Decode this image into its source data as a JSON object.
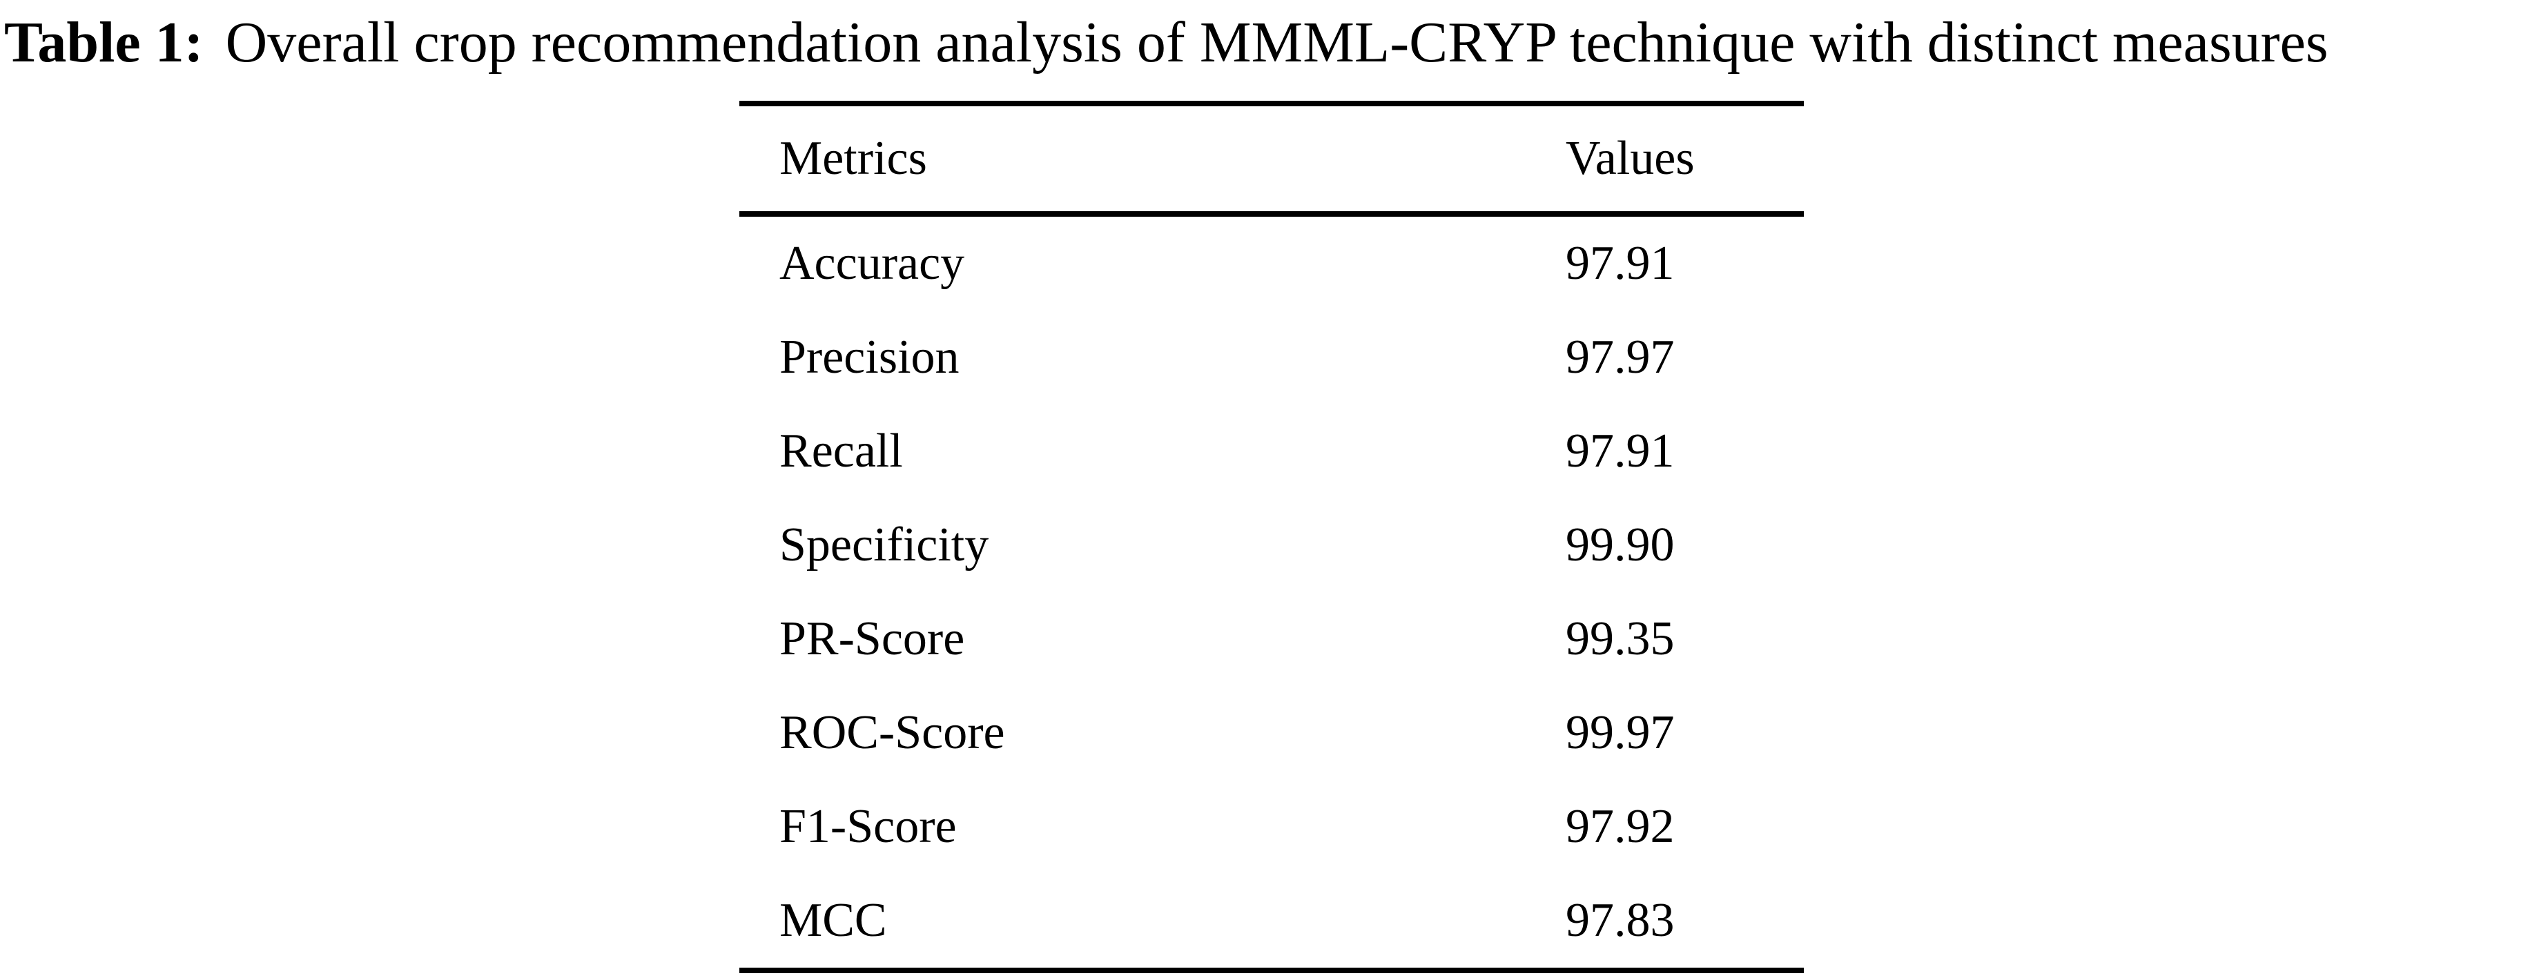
{
  "page": {
    "background_color": "#ffffff",
    "text_color": "#000000",
    "rule_color": "#000000"
  },
  "caption": {
    "label": "Table 1:",
    "text": "Overall crop recommendation analysis of MMML-CRYP technique with distinct measures"
  },
  "table": {
    "headers": {
      "metric": "Metrics",
      "value": "Values"
    },
    "rows": [
      {
        "metric": "Accuracy",
        "value": "97.91"
      },
      {
        "metric": "Precision",
        "value": "97.97"
      },
      {
        "metric": "Recall",
        "value": "97.91"
      },
      {
        "metric": "Specificity",
        "value": "99.90"
      },
      {
        "metric": "PR-Score",
        "value": "99.35"
      },
      {
        "metric": "ROC-Score",
        "value": "99.97"
      },
      {
        "metric": "F1-Score",
        "value": "97.92"
      },
      {
        "metric": "MCC",
        "value": "97.83"
      }
    ]
  },
  "chart_data": {
    "type": "table",
    "title": "Table 1: Overall crop recommendation analysis of MMML-CRYP technique with distinct measures",
    "columns": [
      "Metrics",
      "Values"
    ],
    "rows": [
      [
        "Accuracy",
        "97.91"
      ],
      [
        "Precision",
        "97.97"
      ],
      [
        "Recall",
        "97.91"
      ],
      [
        "Specificity",
        "99.90"
      ],
      [
        "PR-Score",
        "99.35"
      ],
      [
        "ROC-Score",
        "99.97"
      ],
      [
        "F1-Score",
        "97.92"
      ],
      [
        "MCC",
        "97.83"
      ]
    ]
  }
}
